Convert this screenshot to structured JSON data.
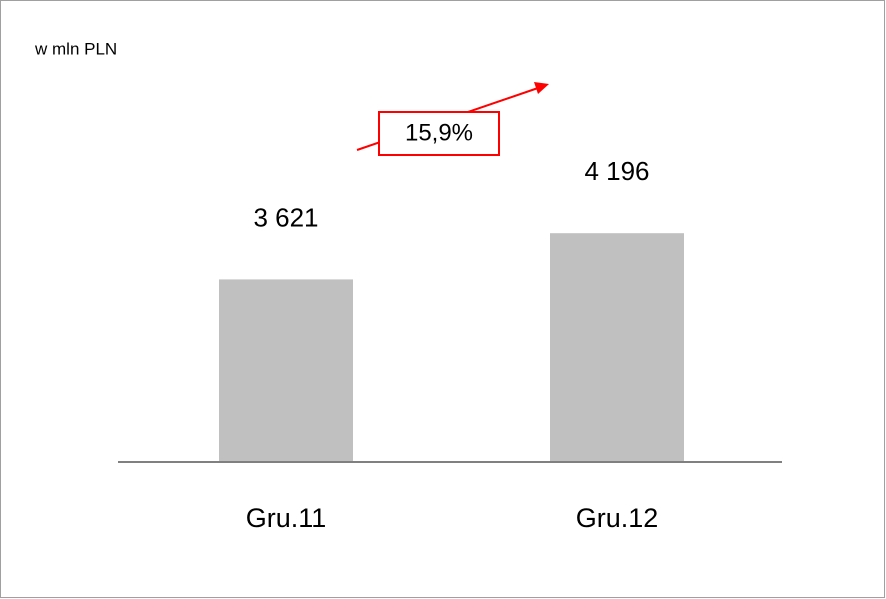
{
  "chart_data": {
    "type": "bar",
    "subtitle": "w mln PLN",
    "categories": [
      "Gru.11",
      "Gru.12"
    ],
    "values": [
      3621,
      4196
    ],
    "value_labels": [
      "3 621",
      "4 196"
    ],
    "color": "#c0c0c0",
    "ylim": [
      1350,
      6350
    ],
    "annotation": "15,9%"
  }
}
